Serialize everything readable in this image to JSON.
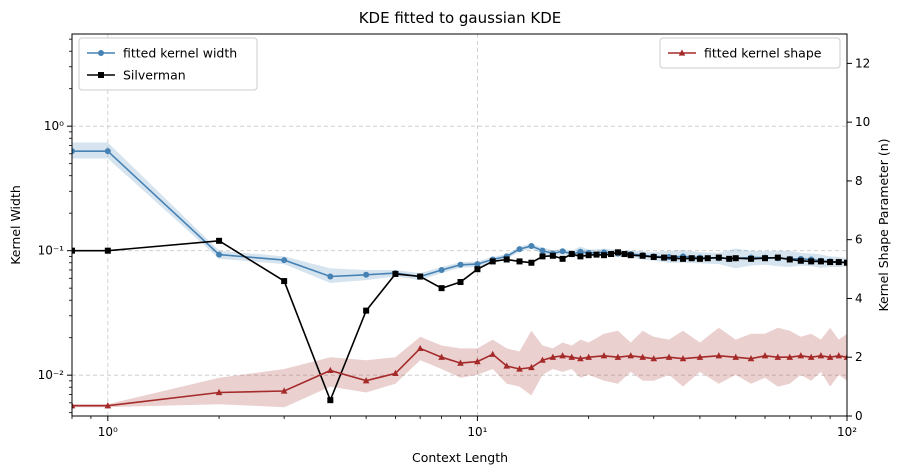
{
  "chart_data": {
    "type": "line",
    "title": "KDE fitted to gaussian KDE",
    "xlabel": "Context Length",
    "ylabel": "Kernel Width",
    "y2label": "Kernel Shape Parameter (n)",
    "xscale": "log",
    "yscale": "log",
    "xlim": [
      0.8,
      100
    ],
    "ylim": [
      0.0047,
      5.5
    ],
    "y2lim": [
      0,
      13
    ],
    "x_ticks": [
      {
        "value": 1,
        "label": "10⁰"
      },
      {
        "value": 10,
        "label": "10¹"
      },
      {
        "value": 100,
        "label": "10²"
      }
    ],
    "y_ticks": [
      {
        "value": 0.01,
        "label": "10⁻²"
      },
      {
        "value": 0.1,
        "label": "10⁻¹"
      },
      {
        "value": 1,
        "label": "10⁰"
      }
    ],
    "y2_ticks": [
      0,
      2,
      4,
      6,
      8,
      10,
      12
    ],
    "grid": true,
    "legend_left": "top-left",
    "legend_right": "top-right",
    "series": [
      {
        "name": "fitted kernel width",
        "axis": "left",
        "color": "#4682b4",
        "marker": "circle",
        "x": [
          0.8,
          1,
          2,
          3,
          4,
          5,
          6,
          7,
          8,
          9,
          10,
          11,
          12,
          13,
          14,
          15,
          16,
          17,
          18,
          19,
          20,
          22,
          24,
          26,
          28,
          30,
          33,
          36,
          40,
          45,
          50,
          55,
          60,
          65,
          70,
          75,
          80,
          85,
          90,
          95,
          100
        ],
        "y": [
          0.63,
          0.63,
          0.093,
          0.084,
          0.062,
          0.064,
          0.066,
          0.062,
          0.07,
          0.077,
          0.078,
          0.085,
          0.09,
          0.103,
          0.109,
          0.1,
          0.095,
          0.099,
          0.094,
          0.098,
          0.096,
          0.097,
          0.095,
          0.094,
          0.092,
          0.09,
          0.089,
          0.09,
          0.088,
          0.087,
          0.087,
          0.088,
          0.088,
          0.087,
          0.086,
          0.086,
          0.085,
          0.083,
          0.082,
          0.081,
          0.08
        ],
        "band_upper": [
          0.74,
          0.74,
          0.1,
          0.09,
          0.072,
          0.07,
          0.07,
          0.066,
          0.074,
          0.081,
          0.082,
          0.089,
          0.094,
          0.108,
          0.114,
          0.106,
          0.101,
          0.104,
          0.1,
          0.108,
          0.102,
          0.104,
          0.101,
          0.1,
          0.099,
          0.097,
          0.1,
          0.101,
          0.097,
          0.096,
          0.104,
          0.1,
          0.099,
          0.1,
          0.1,
          0.096,
          0.095,
          0.093,
          0.09,
          0.089,
          0.086
        ],
        "band_lower": [
          0.55,
          0.55,
          0.086,
          0.078,
          0.055,
          0.058,
          0.062,
          0.058,
          0.066,
          0.073,
          0.074,
          0.081,
          0.086,
          0.098,
          0.104,
          0.094,
          0.089,
          0.094,
          0.088,
          0.09,
          0.09,
          0.09,
          0.089,
          0.088,
          0.085,
          0.083,
          0.08,
          0.08,
          0.079,
          0.078,
          0.072,
          0.076,
          0.077,
          0.075,
          0.074,
          0.076,
          0.075,
          0.073,
          0.074,
          0.074,
          0.075
        ]
      },
      {
        "name": "Silverman",
        "axis": "left",
        "color": "#000000",
        "marker": "square",
        "x": [
          0.8,
          1,
          2,
          3,
          4,
          5,
          6,
          7,
          8,
          9,
          10,
          11,
          12,
          13,
          14,
          15,
          16,
          17,
          18,
          19,
          20,
          21,
          22,
          23,
          24,
          25,
          26,
          28,
          30,
          32,
          34,
          36,
          38,
          40,
          42,
          45,
          48,
          50,
          55,
          60,
          65,
          70,
          75,
          80,
          85,
          90,
          95,
          100
        ],
        "y": [
          0.1,
          0.1,
          0.12,
          0.057,
          0.0063,
          0.033,
          0.065,
          0.062,
          0.05,
          0.056,
          0.071,
          0.082,
          0.085,
          0.082,
          0.08,
          0.09,
          0.091,
          0.086,
          0.094,
          0.09,
          0.092,
          0.093,
          0.092,
          0.094,
          0.097,
          0.094,
          0.092,
          0.091,
          0.089,
          0.088,
          0.087,
          0.086,
          0.087,
          0.086,
          0.087,
          0.088,
          0.086,
          0.087,
          0.086,
          0.087,
          0.088,
          0.085,
          0.083,
          0.082,
          0.082,
          0.081,
          0.081,
          0.08
        ]
      },
      {
        "name": "fitted kernel shape",
        "axis": "right",
        "color": "#a52a2a",
        "marker": "triangle",
        "x": [
          0.8,
          1,
          2,
          3,
          4,
          5,
          6,
          7,
          8,
          9,
          10,
          11,
          12,
          13,
          14,
          15,
          16,
          17,
          18,
          19,
          20,
          22,
          24,
          26,
          28,
          30,
          33,
          36,
          40,
          45,
          50,
          55,
          60,
          65,
          70,
          75,
          80,
          85,
          90,
          95,
          100
        ],
        "y": [
          0.35,
          0.35,
          0.8,
          0.85,
          1.55,
          1.2,
          1.45,
          2.3,
          2.0,
          1.8,
          1.85,
          2.1,
          1.7,
          1.6,
          1.65,
          1.9,
          2.0,
          2.05,
          2.0,
          1.95,
          2.0,
          2.05,
          2.0,
          2.05,
          2.0,
          1.95,
          2.0,
          1.95,
          2.0,
          2.05,
          2.0,
          1.95,
          2.05,
          2.0,
          2.0,
          2.05,
          2.0,
          2.05,
          2.0,
          2.05,
          2.0
        ],
        "band_upper": [
          0.4,
          0.4,
          1.3,
          1.6,
          2.0,
          1.9,
          2.0,
          2.7,
          2.4,
          2.3,
          2.3,
          2.6,
          2.3,
          2.2,
          2.9,
          2.4,
          2.3,
          2.5,
          2.4,
          2.6,
          2.5,
          2.8,
          2.9,
          2.5,
          2.9,
          2.7,
          2.6,
          2.9,
          2.5,
          3.0,
          2.6,
          2.8,
          2.8,
          3.0,
          2.9,
          2.7,
          2.8,
          2.6,
          3.0,
          2.6,
          2.8
        ],
        "band_lower": [
          0.3,
          0.3,
          0.4,
          0.3,
          1.0,
          0.8,
          1.1,
          1.9,
          1.6,
          1.3,
          1.4,
          1.6,
          1.1,
          1.0,
          0.7,
          1.4,
          1.6,
          1.5,
          1.6,
          1.3,
          1.4,
          1.2,
          1.1,
          1.5,
          1.2,
          1.2,
          1.4,
          1.0,
          1.5,
          1.1,
          1.4,
          1.1,
          1.3,
          1.0,
          1.1,
          1.4,
          1.2,
          1.5,
          1.0,
          1.4,
          1.2
        ]
      }
    ]
  }
}
